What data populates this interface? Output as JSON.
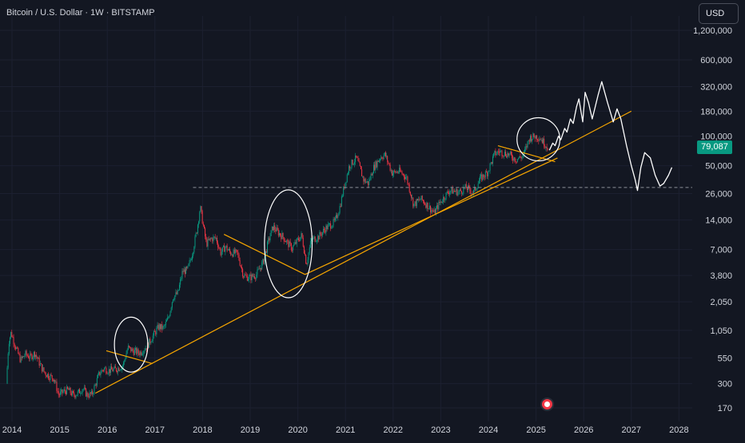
{
  "header": {
    "title": "Bitcoin / U.S. Dollar · 1W · BITSTAMP",
    "currency": "USD"
  },
  "price_label": "79,087",
  "colors": {
    "background": "#131722",
    "up": "#089981",
    "down": "#f23645",
    "trendline": "#f7a600",
    "drawing": "#ffffff",
    "text": "#d1d4dc"
  },
  "chart_data": {
    "type": "candlestick",
    "scale": "log",
    "y_ticks": [
      "1,200,000",
      "600,000",
      "320,000",
      "180,000",
      "100,000",
      "50,000",
      "26,000",
      "14,000",
      "7,000",
      "3,800",
      "2,050",
      "1,050",
      "550",
      "300",
      "170"
    ],
    "y_tick_values": [
      1200000,
      600000,
      320000,
      180000,
      100000,
      50000,
      26000,
      14000,
      7000,
      3800,
      2050,
      1050,
      550,
      300,
      170
    ],
    "x_ticks": [
      "2014",
      "2015",
      "2016",
      "2017",
      "2018",
      "2019",
      "2020",
      "2021",
      "2022",
      "2023",
      "2024",
      "2025",
      "2026",
      "2027",
      "2028"
    ],
    "x_tick_years": [
      2014,
      2015,
      2016,
      2017,
      2018,
      2019,
      2020,
      2021,
      2022,
      2023,
      2024,
      2025,
      2026,
      2027,
      2028
    ],
    "x_range": [
      2013.85,
      2029.3
    ],
    "y_range": [
      120,
      1800000
    ],
    "last_price": 79087,
    "horizontal_level": 30000,
    "price_path": [
      [
        2013.9,
        300
      ],
      [
        2013.95,
        800
      ],
      [
        2014.0,
        1000
      ],
      [
        2014.1,
        700
      ],
      [
        2014.2,
        520
      ],
      [
        2014.3,
        600
      ],
      [
        2014.4,
        560
      ],
      [
        2014.5,
        620
      ],
      [
        2014.6,
        480
      ],
      [
        2014.7,
        390
      ],
      [
        2014.8,
        360
      ],
      [
        2014.9,
        340
      ],
      [
        2015.0,
        230
      ],
      [
        2015.1,
        250
      ],
      [
        2015.2,
        260
      ],
      [
        2015.3,
        230
      ],
      [
        2015.4,
        240
      ],
      [
        2015.5,
        270
      ],
      [
        2015.6,
        230
      ],
      [
        2015.7,
        235
      ],
      [
        2015.85,
        380
      ],
      [
        2015.95,
        430
      ],
      [
        2016.05,
        410
      ],
      [
        2016.2,
        420
      ],
      [
        2016.35,
        460
      ],
      [
        2016.45,
        700
      ],
      [
        2016.55,
        650
      ],
      [
        2016.7,
        620
      ],
      [
        2016.85,
        720
      ],
      [
        2017.0,
        960
      ],
      [
        2017.1,
        1150
      ],
      [
        2017.2,
        1100
      ],
      [
        2017.3,
        1400
      ],
      [
        2017.4,
        2300
      ],
      [
        2017.5,
        2500
      ],
      [
        2017.6,
        4200
      ],
      [
        2017.7,
        4300
      ],
      [
        2017.8,
        6300
      ],
      [
        2017.9,
        11000
      ],
      [
        2017.97,
        19000
      ],
      [
        2018.05,
        11000
      ],
      [
        2018.1,
        8000
      ],
      [
        2018.2,
        9000
      ],
      [
        2018.3,
        9200
      ],
      [
        2018.4,
        6500
      ],
      [
        2018.5,
        7500
      ],
      [
        2018.6,
        6500
      ],
      [
        2018.75,
        6400
      ],
      [
        2018.88,
        3800
      ],
      [
        2019.0,
        3600
      ],
      [
        2019.15,
        3900
      ],
      [
        2019.3,
        5300
      ],
      [
        2019.4,
        8500
      ],
      [
        2019.5,
        12000
      ],
      [
        2019.6,
        10500
      ],
      [
        2019.7,
        9500
      ],
      [
        2019.8,
        8200
      ],
      [
        2019.9,
        7200
      ],
      [
        2020.0,
        8500
      ],
      [
        2020.1,
        9800
      ],
      [
        2020.2,
        5000
      ],
      [
        2020.3,
        8800
      ],
      [
        2020.45,
        9400
      ],
      [
        2020.6,
        11500
      ],
      [
        2020.8,
        13500
      ],
      [
        2020.9,
        19000
      ],
      [
        2021.0,
        32000
      ],
      [
        2021.1,
        50000
      ],
      [
        2021.25,
        60000
      ],
      [
        2021.4,
        36000
      ],
      [
        2021.5,
        33000
      ],
      [
        2021.6,
        47000
      ],
      [
        2021.75,
        61000
      ],
      [
        2021.85,
        65000
      ],
      [
        2022.0,
        42000
      ],
      [
        2022.15,
        44000
      ],
      [
        2022.3,
        38000
      ],
      [
        2022.45,
        20000
      ],
      [
        2022.6,
        23000
      ],
      [
        2022.75,
        19500
      ],
      [
        2022.88,
        16500
      ],
      [
        2023.0,
        21000
      ],
      [
        2023.2,
        28000
      ],
      [
        2023.4,
        27000
      ],
      [
        2023.55,
        30000
      ],
      [
        2023.7,
        26500
      ],
      [
        2023.85,
        37000
      ],
      [
        2024.0,
        43000
      ],
      [
        2024.15,
        66000
      ],
      [
        2024.25,
        70000
      ],
      [
        2024.45,
        65000
      ],
      [
        2024.6,
        58000
      ],
      [
        2024.75,
        63000
      ],
      [
        2024.88,
        96000
      ],
      [
        2025.0,
        100000
      ],
      [
        2025.1,
        97000
      ],
      [
        2025.2,
        84000
      ],
      [
        2025.25,
        79087
      ]
    ],
    "projection_path": [
      [
        2025.28,
        72000
      ],
      [
        2025.35,
        85000
      ],
      [
        2025.4,
        80000
      ],
      [
        2025.47,
        100000
      ],
      [
        2025.52,
        92000
      ],
      [
        2025.6,
        120000
      ],
      [
        2025.65,
        110000
      ],
      [
        2025.72,
        150000
      ],
      [
        2025.78,
        135000
      ],
      [
        2025.85,
        200000
      ],
      [
        2025.9,
        240000
      ],
      [
        2025.98,
        140000
      ],
      [
        2026.03,
        280000
      ],
      [
        2026.1,
        220000
      ],
      [
        2026.18,
        150000
      ],
      [
        2026.3,
        260000
      ],
      [
        2026.38,
        360000
      ],
      [
        2026.5,
        220000
      ],
      [
        2026.62,
        140000
      ],
      [
        2026.7,
        190000
      ],
      [
        2026.78,
        150000
      ],
      [
        2026.9,
        80000
      ],
      [
        2027.0,
        50000
      ],
      [
        2027.08,
        36000
      ],
      [
        2027.13,
        28000
      ],
      [
        2027.2,
        48000
      ],
      [
        2027.28,
        68000
      ],
      [
        2027.4,
        60000
      ],
      [
        2027.5,
        40000
      ],
      [
        2027.6,
        31000
      ],
      [
        2027.68,
        33000
      ],
      [
        2027.78,
        40000
      ],
      [
        2027.85,
        48000
      ]
    ],
    "trendlines": [
      [
        [
          2015.75,
          240
        ],
        [
          2027.0,
          180000
        ]
      ],
      [
        [
          2020.15,
          3900
        ],
        [
          2025.45,
          60000
        ]
      ],
      [
        [
          2015.98,
          650
        ],
        [
          2016.95,
          480
        ]
      ],
      [
        [
          2018.45,
          10000
        ],
        [
          2020.15,
          3900
        ]
      ],
      [
        [
          2024.2,
          80000
        ],
        [
          2025.4,
          55000
        ]
      ]
    ],
    "circles": [
      {
        "x": 2016.5,
        "y": 750,
        "rx_years": 0.35,
        "ry_decades": 0.28
      },
      {
        "x": 2019.8,
        "y": 8000,
        "rx_years": 0.5,
        "ry_decades": 0.55
      },
      {
        "x": 2025.05,
        "y": 93000,
        "rx_years": 0.45,
        "ry_decades": 0.22
      }
    ]
  }
}
